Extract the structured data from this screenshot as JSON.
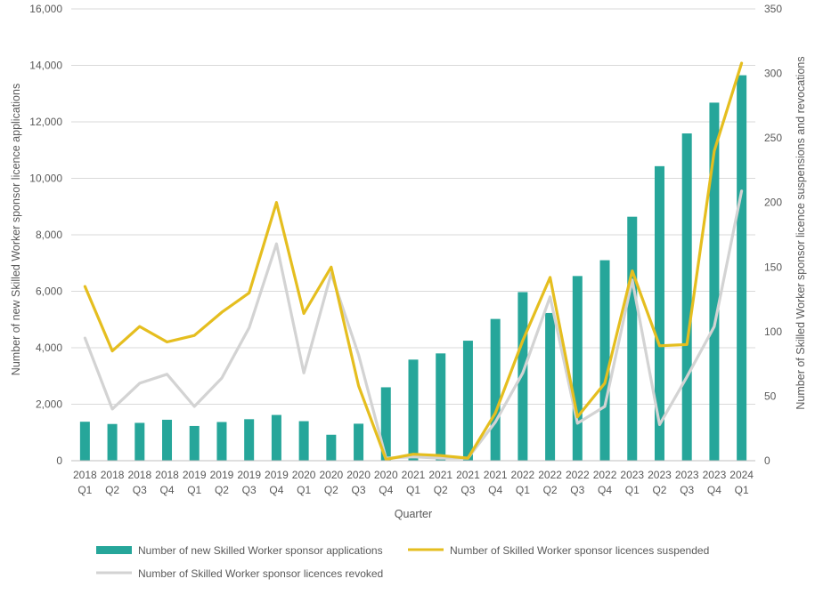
{
  "chart_data": {
    "type": "bar",
    "xlabel": "Quarter",
    "ylabel": "Number of new Skilled Worker sponsor licence applications",
    "y2label": "Number of Skilled Worker sponsor licence suspensions and revocations",
    "ylim": [
      0,
      16000
    ],
    "y2lim": [
      0,
      350
    ],
    "yticks": [
      "0",
      "2,000",
      "4,000",
      "6,000",
      "8,000",
      "10,000",
      "12,000",
      "14,000",
      "16,000"
    ],
    "y2ticks": [
      "0",
      "50",
      "100",
      "150",
      "200",
      "250",
      "300",
      "350"
    ],
    "categories": [
      {
        "year": "2018",
        "q": "Q1"
      },
      {
        "year": "2018",
        "q": "Q2"
      },
      {
        "year": "2018",
        "q": "Q3"
      },
      {
        "year": "2018",
        "q": "Q4"
      },
      {
        "year": "2019",
        "q": "Q1"
      },
      {
        "year": "2019",
        "q": "Q2"
      },
      {
        "year": "2019",
        "q": "Q3"
      },
      {
        "year": "2019",
        "q": "Q4"
      },
      {
        "year": "2020",
        "q": "Q1"
      },
      {
        "year": "2020",
        "q": "Q2"
      },
      {
        "year": "2020",
        "q": "Q3"
      },
      {
        "year": "2020",
        "q": "Q4"
      },
      {
        "year": "2021",
        "q": "Q1"
      },
      {
        "year": "2021",
        "q": "Q2"
      },
      {
        "year": "2021",
        "q": "Q3"
      },
      {
        "year": "2021",
        "q": "Q4"
      },
      {
        "year": "2022",
        "q": "Q1"
      },
      {
        "year": "2022",
        "q": "Q2"
      },
      {
        "year": "2022",
        "q": "Q3"
      },
      {
        "year": "2022",
        "q": "Q4"
      },
      {
        "year": "2023",
        "q": "Q1"
      },
      {
        "year": "2023",
        "q": "Q2"
      },
      {
        "year": "2023",
        "q": "Q3"
      },
      {
        "year": "2023",
        "q": "Q4"
      },
      {
        "year": "2024",
        "q": "Q1"
      }
    ],
    "series": [
      {
        "name": "Number of new Skilled Worker sponsor applications",
        "kind": "bar",
        "axis": "left",
        "color": "#26a69a",
        "values": [
          1380,
          1300,
          1340,
          1450,
          1230,
          1370,
          1470,
          1620,
          1400,
          920,
          1310,
          2600,
          3580,
          3800,
          4250,
          5020,
          5970,
          5230,
          6540,
          7100,
          8640,
          10430,
          11590,
          12680,
          13650
        ]
      },
      {
        "name": "Number of Skilled Worker sponsor licences suspended",
        "kind": "line",
        "axis": "right",
        "color": "#e5be1f",
        "values": [
          135,
          85,
          104,
          92,
          97,
          115,
          130,
          200,
          114,
          150,
          58,
          1,
          5,
          4,
          2,
          37,
          93,
          142,
          34,
          60,
          147,
          89,
          90,
          240,
          308
        ]
      },
      {
        "name": "Number of Skilled Worker sponsor licences revoked",
        "kind": "line",
        "axis": "right",
        "color": "#d3d3d3",
        "values": [
          95,
          40,
          60,
          67,
          42,
          64,
          103,
          168,
          68,
          145,
          82,
          2,
          3,
          2,
          2,
          30,
          68,
          127,
          29,
          42,
          140,
          28,
          65,
          104,
          209
        ]
      }
    ],
    "legend_position": "bottom",
    "grid": "horizontal"
  }
}
